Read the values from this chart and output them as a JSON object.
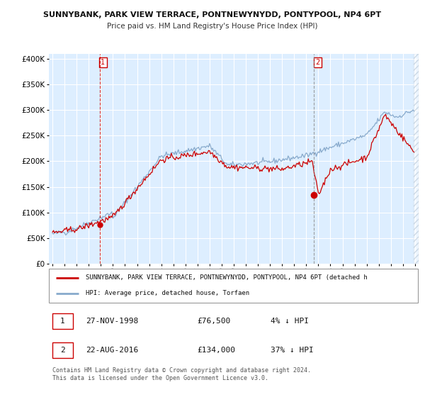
{
  "title": "SUNNYBANK, PARK VIEW TERRACE, PONTNEWYNYDD, PONTYPOOL, NP4 6PT",
  "subtitle": "Price paid vs. HM Land Registry's House Price Index (HPI)",
  "background_color": "#ffffff",
  "plot_bg_color": "#ddeeff",
  "grid_color": "#ffffff",
  "sale1_date_x": 1998.9,
  "sale1_price": 76500,
  "sale1_label": "1",
  "sale1_date_str": "27-NOV-1998",
  "sale1_price_str": "£76,500",
  "sale1_pct_str": "4% ↓ HPI",
  "sale2_date_x": 2016.65,
  "sale2_price": 134000,
  "sale2_label": "2",
  "sale2_date_str": "22-AUG-2016",
  "sale2_price_str": "£134,000",
  "sale2_pct_str": "37% ↓ HPI",
  "legend_line1": "SUNNYBANK, PARK VIEW TERRACE, PONTNEWYNYDD, PONTYPOOL, NP4 6PT (detached h",
  "legend_line2": "HPI: Average price, detached house, Torfaen",
  "footer": "Contains HM Land Registry data © Crown copyright and database right 2024.\nThis data is licensed under the Open Government Licence v3.0.",
  "red_color": "#cc0000",
  "blue_color": "#88aacc",
  "ylim": [
    0,
    410000
  ],
  "yticks": [
    0,
    50000,
    100000,
    150000,
    200000,
    250000,
    300000,
    350000,
    400000
  ],
  "xlim": [
    1994.7,
    2025.3
  ],
  "xtick_years": [
    1995,
    1996,
    1997,
    1998,
    1999,
    2000,
    2001,
    2002,
    2003,
    2004,
    2005,
    2006,
    2007,
    2008,
    2009,
    2010,
    2011,
    2012,
    2013,
    2014,
    2015,
    2016,
    2017,
    2018,
    2019,
    2020,
    2021,
    2022,
    2023,
    2024,
    2025
  ],
  "hatch_start": 2024.917
}
